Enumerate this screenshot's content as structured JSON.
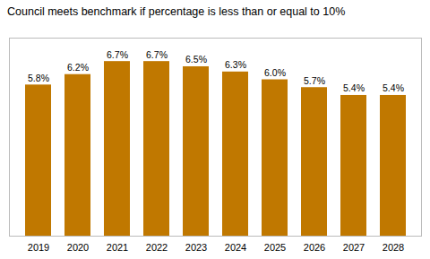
{
  "chart_data": {
    "type": "bar",
    "title": "Council meets benchmark if percentage is less than or equal to 10%",
    "categories": [
      "2019",
      "2020",
      "2021",
      "2022",
      "2023",
      "2024",
      "2025",
      "2026",
      "2027",
      "2028"
    ],
    "values": [
      5.8,
      6.2,
      6.7,
      6.7,
      6.5,
      6.3,
      6.0,
      5.7,
      5.4,
      5.4
    ],
    "value_labels": [
      "5.8%",
      "6.2%",
      "6.7%",
      "6.7%",
      "6.5%",
      "6.3%",
      "6.0%",
      "5.7%",
      "5.4%",
      "5.4%"
    ],
    "color": "#C07800",
    "ylim": [
      0,
      7.6
    ],
    "grid": false,
    "data_labels": true,
    "tick_labels": "x"
  }
}
